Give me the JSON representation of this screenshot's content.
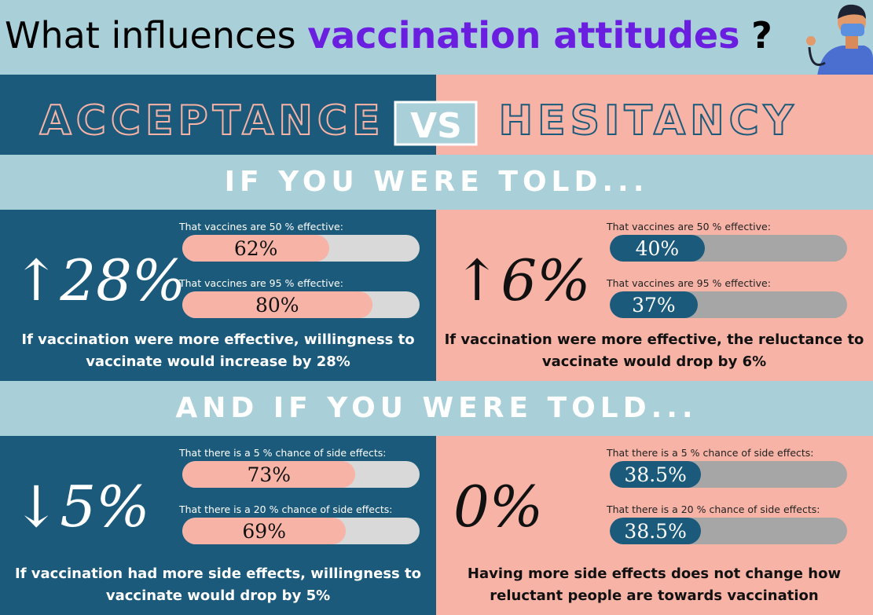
{
  "header": {
    "title_plain": "What influences",
    "title_highlight": "vaccination attitudes",
    "title_end": "?"
  },
  "versus": {
    "left": "ACCEPTANCE",
    "middle": "VS",
    "right": "HESITANCY"
  },
  "sections": [
    {
      "heading": "IF YOU WERE TOLD...",
      "panels": [
        {
          "change": "↑28%",
          "items": [
            {
              "caption": "That vaccines are 50 % effective:",
              "value": 62,
              "label": "62%"
            },
            {
              "caption": "That vaccines are 95 % effective:",
              "value": 80,
              "label": "80%"
            }
          ],
          "summary": "If vaccination were more effective, willingness to vaccinate would increase by 28%"
        },
        {
          "change": "↑6%",
          "items": [
            {
              "caption": "That vaccines are 50 % effective:",
              "value": 40,
              "label": "40%"
            },
            {
              "caption": "That vaccines are 95 % effective:",
              "value": 37,
              "label": "37%"
            }
          ],
          "summary": "If vaccination were more effective, the reluctance to vaccinate would drop by 6%"
        }
      ]
    },
    {
      "heading": "AND IF YOU WERE TOLD...",
      "panels": [
        {
          "change": "↓5%",
          "items": [
            {
              "caption": "That there is a 5 % chance of side effects:",
              "value": 73,
              "label": "73%"
            },
            {
              "caption": "That there is a 20 % chance of side effects:",
              "value": 69,
              "label": "69%"
            }
          ],
          "summary": "If vaccination had more side effects, willingness to vaccinate would drop by 5%"
        },
        {
          "change": "0%",
          "items": [
            {
              "caption": "That there is a 5 % chance of side effects:",
              "value": 38.5,
              "label": "38.5%"
            },
            {
              "caption": "That there is a 20 % chance of side effects:",
              "value": 38.5,
              "label": "38.5%"
            }
          ],
          "summary": "Having more side effects does not change how reluctant people are towards vaccination"
        }
      ]
    }
  ]
}
